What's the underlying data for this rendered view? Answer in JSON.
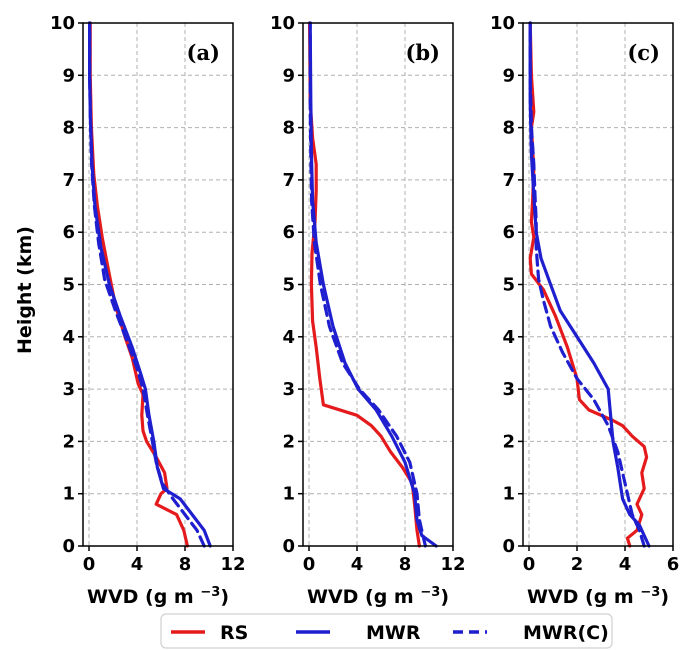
{
  "colors": {
    "RS": "#e41a1c",
    "MWR": "#1f1fcf",
    "MWR(C)": "#1f1fcf"
  },
  "ylabel": "Height (km)",
  "legend": {
    "placement": "bottom",
    "entries": [
      {
        "name": "RS",
        "style": "solid",
        "color": "#e41a1c"
      },
      {
        "name": "MWR",
        "style": "solid",
        "color": "#1f1fcf"
      },
      {
        "name": "MWR(C)",
        "style": "dashed",
        "color": "#1f1fcf"
      }
    ]
  },
  "chart_data": [
    {
      "type": "line",
      "panel_label": "(a)",
      "xlabel": "WVD (g m",
      "xlabel_sup": "−3",
      "xlabel_end": ")",
      "xlim": [
        -0.5,
        12
      ],
      "ylim": [
        0,
        10
      ],
      "xticks": [
        0,
        4,
        8,
        12
      ],
      "yticks": [
        0,
        1,
        2,
        3,
        4,
        5,
        6,
        7,
        8,
        9,
        10
      ],
      "series": [
        {
          "name": "RS",
          "style": "solid",
          "points": [
            [
              8.2,
              0
            ],
            [
              7.9,
              0.3
            ],
            [
              7.3,
              0.6
            ],
            [
              5.6,
              0.8
            ],
            [
              6.0,
              1.0
            ],
            [
              6.5,
              1.1
            ],
            [
              6.3,
              1.4
            ],
            [
              5.6,
              1.7
            ],
            [
              4.8,
              2.0
            ],
            [
              4.5,
              2.2
            ],
            [
              4.4,
              2.5
            ],
            [
              4.5,
              2.9
            ],
            [
              4.1,
              3.1
            ],
            [
              3.6,
              3.6
            ],
            [
              3.0,
              4.0
            ],
            [
              2.2,
              4.6
            ],
            [
              1.6,
              5.3
            ],
            [
              1.1,
              5.9
            ],
            [
              0.7,
              6.5
            ],
            [
              0.4,
              7.1
            ],
            [
              0.2,
              8.0
            ],
            [
              0.1,
              9.0
            ],
            [
              0.1,
              10.0
            ]
          ]
        },
        {
          "name": "MWR",
          "style": "solid",
          "points": [
            [
              10.1,
              0
            ],
            [
              9.6,
              0.3
            ],
            [
              8.6,
              0.6
            ],
            [
              7.6,
              0.9
            ],
            [
              6.2,
              1.1
            ],
            [
              5.7,
              1.5
            ],
            [
              5.4,
              2.0
            ],
            [
              5.0,
              2.5
            ],
            [
              4.7,
              3.0
            ],
            [
              4.3,
              3.3
            ],
            [
              3.6,
              3.8
            ],
            [
              2.6,
              4.4
            ],
            [
              1.7,
              5.0
            ],
            [
              1.0,
              5.7
            ],
            [
              0.5,
              6.5
            ],
            [
              0.25,
              7.3
            ],
            [
              0.12,
              8.2
            ],
            [
              0.05,
              9.0
            ],
            [
              0.05,
              10.0
            ]
          ]
        },
        {
          "name": "MWR(C)",
          "style": "dashed",
          "points": [
            [
              9.6,
              0
            ],
            [
              9.0,
              0.3
            ],
            [
              8.0,
              0.6
            ],
            [
              7.0,
              0.9
            ],
            [
              6.1,
              1.2
            ],
            [
              5.6,
              1.6
            ],
            [
              5.2,
              2.1
            ],
            [
              4.8,
              2.6
            ],
            [
              4.5,
              3.0
            ],
            [
              4.0,
              3.4
            ],
            [
              3.2,
              3.9
            ],
            [
              2.2,
              4.5
            ],
            [
              1.3,
              5.1
            ],
            [
              0.8,
              5.8
            ],
            [
              0.45,
              6.5
            ],
            [
              0.22,
              7.3
            ],
            [
              0.12,
              8.2
            ],
            [
              0.05,
              9.0
            ],
            [
              0.05,
              10.0
            ]
          ]
        }
      ]
    },
    {
      "type": "line",
      "panel_label": "(b)",
      "xlabel": "WVD (g m",
      "xlabel_sup": "−3",
      "xlabel_end": ")",
      "xlim": [
        -0.5,
        12
      ],
      "ylim": [
        0,
        10
      ],
      "xticks": [
        0,
        4,
        8,
        12
      ],
      "yticks": [
        0,
        1,
        2,
        3,
        4,
        5,
        6,
        7,
        8,
        9,
        10
      ],
      "series": [
        {
          "name": "RS",
          "style": "solid",
          "points": [
            [
              9.2,
              0
            ],
            [
              9.0,
              0.3
            ],
            [
              8.8,
              0.8
            ],
            [
              8.6,
              1.2
            ],
            [
              7.8,
              1.5
            ],
            [
              6.8,
              1.8
            ],
            [
              6.0,
              2.1
            ],
            [
              5.2,
              2.3
            ],
            [
              4.0,
              2.5
            ],
            [
              1.2,
              2.7
            ],
            [
              0.9,
              3.2
            ],
            [
              0.6,
              3.8
            ],
            [
              0.3,
              4.3
            ],
            [
              0.2,
              5.0
            ],
            [
              0.25,
              5.6
            ],
            [
              0.5,
              6.2
            ],
            [
              0.6,
              6.8
            ],
            [
              0.6,
              7.3
            ],
            [
              0.3,
              7.8
            ],
            [
              0.1,
              8.5
            ],
            [
              0.05,
              10.0
            ]
          ]
        },
        {
          "name": "MWR",
          "style": "solid",
          "points": [
            [
              10.6,
              0
            ],
            [
              9.4,
              0.2
            ],
            [
              9.0,
              0.5
            ],
            [
              8.8,
              1.0
            ],
            [
              8.0,
              1.6
            ],
            [
              6.9,
              2.1
            ],
            [
              5.6,
              2.6
            ],
            [
              4.1,
              3.0
            ],
            [
              3.0,
              3.5
            ],
            [
              2.0,
              4.2
            ],
            [
              1.2,
              5.0
            ],
            [
              0.6,
              5.8
            ],
            [
              0.3,
              6.6
            ],
            [
              0.2,
              7.5
            ],
            [
              0.15,
              8.5
            ],
            [
              0.1,
              10.0
            ]
          ]
        },
        {
          "name": "MWR(C)",
          "style": "dashed",
          "points": [
            [
              9.7,
              0
            ],
            [
              9.2,
              0.5
            ],
            [
              9.0,
              1.0
            ],
            [
              8.4,
              1.6
            ],
            [
              7.3,
              2.1
            ],
            [
              5.8,
              2.6
            ],
            [
              4.2,
              3.0
            ],
            [
              2.8,
              3.5
            ],
            [
              1.7,
              4.2
            ],
            [
              0.95,
              5.0
            ],
            [
              0.45,
              5.8
            ],
            [
              0.22,
              6.6
            ],
            [
              0.15,
              7.5
            ],
            [
              0.1,
              8.5
            ],
            [
              0.1,
              10.0
            ]
          ]
        }
      ]
    },
    {
      "type": "line",
      "panel_label": "(c)",
      "xlabel": "WVD (g m",
      "xlabel_sup": "−3",
      "xlabel_end": ")",
      "xlim": [
        -0.25,
        6
      ],
      "ylim": [
        0,
        10
      ],
      "xticks": [
        0,
        2,
        4,
        6
      ],
      "yticks": [
        0,
        1,
        2,
        3,
        4,
        5,
        6,
        7,
        8,
        9,
        10
      ],
      "series": [
        {
          "name": "RS",
          "style": "solid",
          "points": [
            [
              4.2,
              0
            ],
            [
              4.1,
              0.15
            ],
            [
              4.5,
              0.3
            ],
            [
              4.7,
              0.6
            ],
            [
              4.5,
              0.8
            ],
            [
              4.8,
              1.1
            ],
            [
              4.7,
              1.4
            ],
            [
              4.9,
              1.7
            ],
            [
              4.8,
              1.9
            ],
            [
              4.3,
              2.1
            ],
            [
              3.9,
              2.3
            ],
            [
              3.5,
              2.4
            ],
            [
              2.5,
              2.6
            ],
            [
              2.1,
              2.8
            ],
            [
              2.0,
              3.2
            ],
            [
              1.6,
              3.8
            ],
            [
              1.1,
              4.4
            ],
            [
              0.6,
              4.9
            ],
            [
              0.1,
              5.2
            ],
            [
              0.05,
              5.5
            ],
            [
              0.2,
              5.9
            ],
            [
              0.1,
              6.2
            ],
            [
              0.15,
              6.6
            ],
            [
              0.2,
              7.2
            ],
            [
              0.1,
              8.0
            ],
            [
              0.2,
              8.3
            ],
            [
              0.1,
              9.0
            ],
            [
              0.05,
              10.0
            ]
          ]
        },
        {
          "name": "MWR",
          "style": "solid",
          "points": [
            [
              5.0,
              0
            ],
            [
              4.8,
              0.2
            ],
            [
              4.6,
              0.4
            ],
            [
              4.2,
              0.6
            ],
            [
              3.9,
              0.9
            ],
            [
              3.8,
              1.2
            ],
            [
              3.7,
              1.5
            ],
            [
              3.5,
              2.0
            ],
            [
              3.4,
              2.5
            ],
            [
              3.3,
              3.0
            ],
            [
              2.7,
              3.5
            ],
            [
              2.0,
              4.0
            ],
            [
              1.3,
              4.5
            ],
            [
              0.9,
              5.0
            ],
            [
              0.5,
              5.5
            ],
            [
              0.3,
              6.0
            ],
            [
              0.2,
              6.7
            ],
            [
              0.1,
              7.5
            ],
            [
              0.05,
              8.5
            ],
            [
              0.05,
              9.5
            ],
            [
              0.05,
              10.0
            ]
          ]
        },
        {
          "name": "MWR(C)",
          "style": "dashed",
          "points": [
            [
              4.8,
              0
            ],
            [
              4.6,
              0.3
            ],
            [
              4.3,
              0.6
            ],
            [
              4.1,
              1.0
            ],
            [
              3.9,
              1.4
            ],
            [
              3.7,
              1.8
            ],
            [
              3.3,
              2.3
            ],
            [
              2.7,
              2.8
            ],
            [
              2.0,
              3.2
            ],
            [
              1.4,
              3.7
            ],
            [
              0.9,
              4.2
            ],
            [
              0.6,
              4.7
            ],
            [
              0.4,
              5.1
            ],
            [
              0.3,
              5.7
            ],
            [
              0.3,
              6.2
            ],
            [
              0.25,
              6.7
            ],
            [
              0.2,
              7.3
            ],
            [
              0.1,
              8.0
            ],
            [
              0.05,
              9.0
            ],
            [
              0.05,
              10.0
            ]
          ]
        }
      ]
    }
  ]
}
